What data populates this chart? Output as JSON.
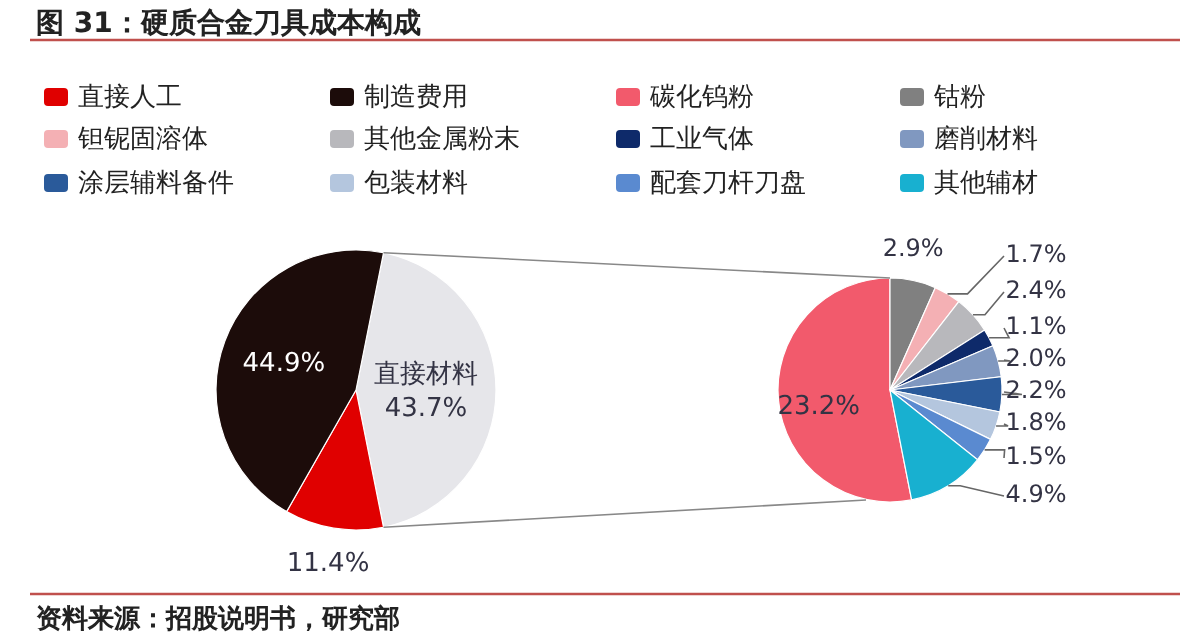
{
  "chart_data": [
    {
      "type": "pie",
      "title": "图 31：硬质合金刀具成本构成",
      "legend": "top",
      "categories": [
        "直接人工",
        "制造费用",
        null
      ],
      "values": [
        11.4,
        44.9,
        43.7
      ],
      "colors": [
        "#e00000",
        "#1c0c0a",
        "#e6e6ea"
      ],
      "value_labels": [
        "11.4%",
        "44.9%",
        "直接材料\n43.7%"
      ],
      "annotations": [
        "资料来源：招股说明书，研究部"
      ]
    },
    {
      "type": "pie",
      "legend": "top",
      "categories": [
        "碳化钨粉",
        "钴粉",
        "钽铌固溶体",
        "其他金属粉末",
        "工业气体",
        "磨削材料",
        "涂层辅料备件",
        "包装材料",
        "配套刀杆刀盘",
        "其他辅材"
      ],
      "values": [
        23.2,
        2.9,
        1.7,
        2.4,
        1.1,
        2.0,
        2.2,
        1.8,
        1.5,
        4.9
      ],
      "colors": [
        "#f25a6c",
        "#808080",
        "#f4b0b4",
        "#b8b8bc",
        "#0e2a6a",
        "#8098c0",
        "#2a5a9a",
        "#b4c6de",
        "#5a8ad0",
        "#18b0d0"
      ],
      "value_labels": [
        "23.2%",
        "2.9%",
        "1.7%",
        "2.4%",
        "1.1%",
        "2.0%",
        "2.2%",
        "1.8%",
        "1.5%",
        "4.9%"
      ]
    }
  ]
}
